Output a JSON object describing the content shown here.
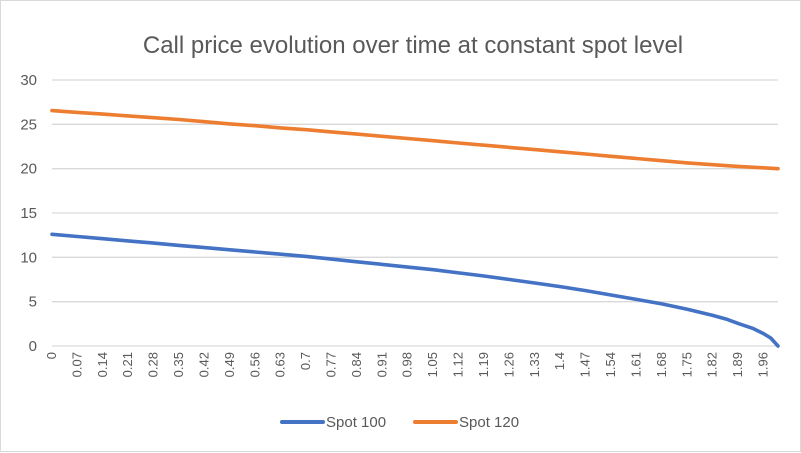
{
  "chart_data": {
    "type": "line",
    "title": "Call price evolution over time at constant spot level",
    "xlabel": "",
    "ylabel": "",
    "ylim": [
      0,
      30
    ],
    "yticks": [
      0,
      5,
      10,
      15,
      20,
      25,
      30
    ],
    "xlim": [
      0,
      2.0
    ],
    "xtick_labels": [
      "0",
      "0.07",
      "0.14",
      "0.21",
      "0.28",
      "0.35",
      "0.42",
      "0.49",
      "0.56",
      "0.63",
      "0.7",
      "0.77",
      "0.84",
      "0.91",
      "0.98",
      "1.05",
      "1.12",
      "1.19",
      "1.26",
      "1.33",
      "1.4",
      "1.47",
      "1.54",
      "1.61",
      "1.68",
      "1.75",
      "1.82",
      "1.89",
      "1.96"
    ],
    "grid": true,
    "legend_position": "bottom",
    "series": [
      {
        "name": "Spot 100",
        "color": "#4472c4",
        "x": [
          0,
          0.07,
          0.14,
          0.21,
          0.28,
          0.35,
          0.42,
          0.49,
          0.56,
          0.63,
          0.7,
          0.77,
          0.84,
          0.91,
          0.98,
          1.05,
          1.12,
          1.19,
          1.26,
          1.33,
          1.4,
          1.47,
          1.54,
          1.61,
          1.68,
          1.75,
          1.82,
          1.86,
          1.89,
          1.93,
          1.96,
          1.98,
          2.0
        ],
        "values": [
          12.6,
          12.35,
          12.1,
          11.85,
          11.6,
          11.35,
          11.1,
          10.85,
          10.6,
          10.35,
          10.1,
          9.8,
          9.5,
          9.2,
          8.9,
          8.6,
          8.25,
          7.9,
          7.5,
          7.1,
          6.7,
          6.25,
          5.75,
          5.25,
          4.75,
          4.15,
          3.45,
          3.0,
          2.55,
          2.0,
          1.4,
          0.9,
          0.0
        ]
      },
      {
        "name": "Spot 120",
        "color": "#ed7d31",
        "x": [
          0,
          0.07,
          0.14,
          0.21,
          0.28,
          0.35,
          0.42,
          0.49,
          0.56,
          0.63,
          0.7,
          0.77,
          0.84,
          0.91,
          0.98,
          1.05,
          1.12,
          1.19,
          1.26,
          1.33,
          1.4,
          1.47,
          1.54,
          1.61,
          1.68,
          1.75,
          1.82,
          1.89,
          1.96,
          2.0
        ],
        "values": [
          26.55,
          26.35,
          26.15,
          25.95,
          25.75,
          25.55,
          25.3,
          25.05,
          24.85,
          24.6,
          24.4,
          24.15,
          23.9,
          23.65,
          23.4,
          23.15,
          22.9,
          22.65,
          22.4,
          22.15,
          21.9,
          21.65,
          21.4,
          21.15,
          20.9,
          20.65,
          20.45,
          20.25,
          20.1,
          20.0
        ]
      }
    ]
  }
}
